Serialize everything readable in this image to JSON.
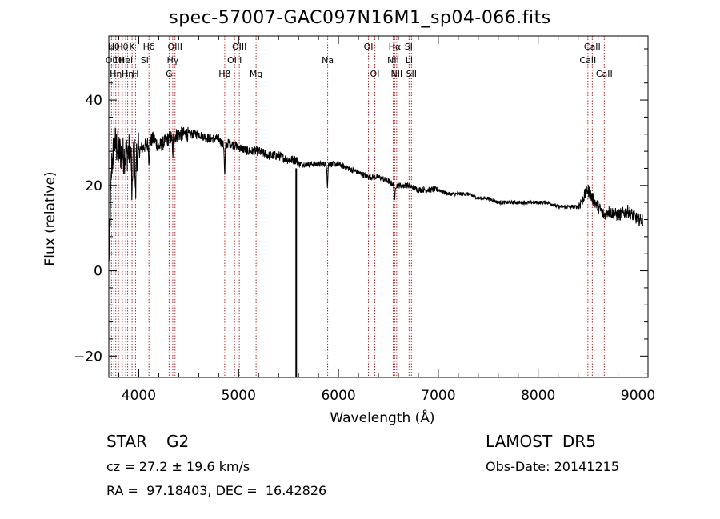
{
  "chart_data": {
    "type": "line",
    "title": "spec-57007-GAC097N16M1_sp04-066.fits",
    "xlabel": "Wavelength (Å)",
    "ylabel": "Flux (relative)",
    "xlim": [
      3700,
      9100
    ],
    "ylim": [
      -25,
      55
    ],
    "xticks": [
      4000,
      5000,
      6000,
      7000,
      8000,
      9000
    ],
    "yticks": [
      -20,
      0,
      20,
      40
    ],
    "grid": false,
    "spectrum_color": "#000000",
    "line_marker_color": "#b22222",
    "spectrum_anchors": {
      "x": [
        3700,
        3730,
        3760,
        3800,
        3850,
        3900,
        3950,
        4000,
        4050,
        4100,
        4150,
        4200,
        4300,
        4400,
        4500,
        4600,
        4700,
        4800,
        4860,
        4900,
        5000,
        5100,
        5200,
        5300,
        5400,
        5500,
        5580,
        5600,
        5700,
        5800,
        5900,
        6000,
        6100,
        6200,
        6300,
        6400,
        6500,
        6560,
        6600,
        6700,
        6800,
        6900,
        7000,
        7100,
        7200,
        7300,
        7400,
        7500,
        7600,
        7700,
        7800,
        7900,
        8000,
        8100,
        8200,
        8300,
        8400,
        8450,
        8498,
        8542,
        8600,
        8662,
        8700,
        8800,
        8900,
        9000,
        9050
      ],
      "y": [
        2,
        25,
        30,
        28,
        27,
        28,
        27,
        28,
        29,
        30,
        31,
        29,
        31,
        32,
        32,
        32,
        31,
        31,
        29,
        30,
        29,
        28,
        28,
        27,
        27,
        26,
        26,
        25,
        25,
        25,
        25,
        25,
        24,
        23,
        22,
        22,
        21,
        20,
        20,
        20,
        19,
        19,
        19,
        18,
        18,
        18,
        17,
        17,
        16,
        16,
        16,
        16,
        16,
        16,
        15,
        15,
        15,
        17,
        19,
        17,
        15,
        13,
        14,
        13,
        14,
        12,
        12
      ]
    },
    "absorption_features": [
      {
        "x": 3933,
        "depth": 12
      },
      {
        "x": 3968,
        "depth": 10
      },
      {
        "x": 4102,
        "depth": 4
      },
      {
        "x": 4340,
        "depth": 5
      },
      {
        "x": 4861,
        "depth": 7
      },
      {
        "x": 5890,
        "depth": 5
      },
      {
        "x": 6563,
        "depth": 4
      }
    ],
    "spike": {
      "x": 5577,
      "y_min": -25,
      "y_max": 24
    },
    "line_markers": [
      {
        "x": 3727,
        "label": "OII",
        "row": 2
      },
      {
        "x": 3750,
        "label": "Hθ",
        "row": 1
      },
      {
        "x": 3770,
        "label": "Hη",
        "row": 3
      },
      {
        "x": 3797,
        "label": "OII",
        "row": 2
      },
      {
        "x": 3835,
        "label": "Hθ",
        "row": 1
      },
      {
        "x": 3869,
        "label": "HeI",
        "row": 2
      },
      {
        "x": 3889,
        "label": "Hη",
        "row": 3
      },
      {
        "x": 3933,
        "label": "K",
        "row": 1
      },
      {
        "x": 3968,
        "label": "H",
        "row": 3
      },
      {
        "x": 4072,
        "label": "SII",
        "row": 2
      },
      {
        "x": 4102,
        "label": "Hδ",
        "row": 1
      },
      {
        "x": 4304,
        "label": "G",
        "row": 3
      },
      {
        "x": 4340,
        "label": "Hγ",
        "row": 2
      },
      {
        "x": 4363,
        "label": "OIII",
        "row": 1
      },
      {
        "x": 4861,
        "label": "Hβ",
        "row": 3
      },
      {
        "x": 4959,
        "label": "OIII",
        "row": 2
      },
      {
        "x": 5007,
        "label": "OIII",
        "row": 1
      },
      {
        "x": 5175,
        "label": "Mg",
        "row": 3
      },
      {
        "x": 5892,
        "label": "Na",
        "row": 2
      },
      {
        "x": 6300,
        "label": "OI",
        "row": 1
      },
      {
        "x": 6364,
        "label": "OI",
        "row": 3
      },
      {
        "x": 6548,
        "label": "NII",
        "row": 2
      },
      {
        "x": 6563,
        "label": "Hα",
        "row": 1
      },
      {
        "x": 6583,
        "label": "NII",
        "row": 3
      },
      {
        "x": 6707,
        "label": "Li",
        "row": 2
      },
      {
        "x": 6716,
        "label": "SII",
        "row": 1
      },
      {
        "x": 6731,
        "label": "SII",
        "row": 3
      },
      {
        "x": 8498,
        "label": "CaII",
        "row": 2
      },
      {
        "x": 8542,
        "label": "CaII",
        "row": 1
      },
      {
        "x": 8662,
        "label": "CaII",
        "row": 3
      }
    ]
  },
  "footer": {
    "object_class": "STAR",
    "subclass": "G2",
    "redshift": "cz = 27.2 ± 19.6 km/s",
    "coords": "RA =  97.18403, DEC =  16.42826",
    "survey": "LAMOST  DR5",
    "obs_date": "Obs-Date: 20141215"
  }
}
